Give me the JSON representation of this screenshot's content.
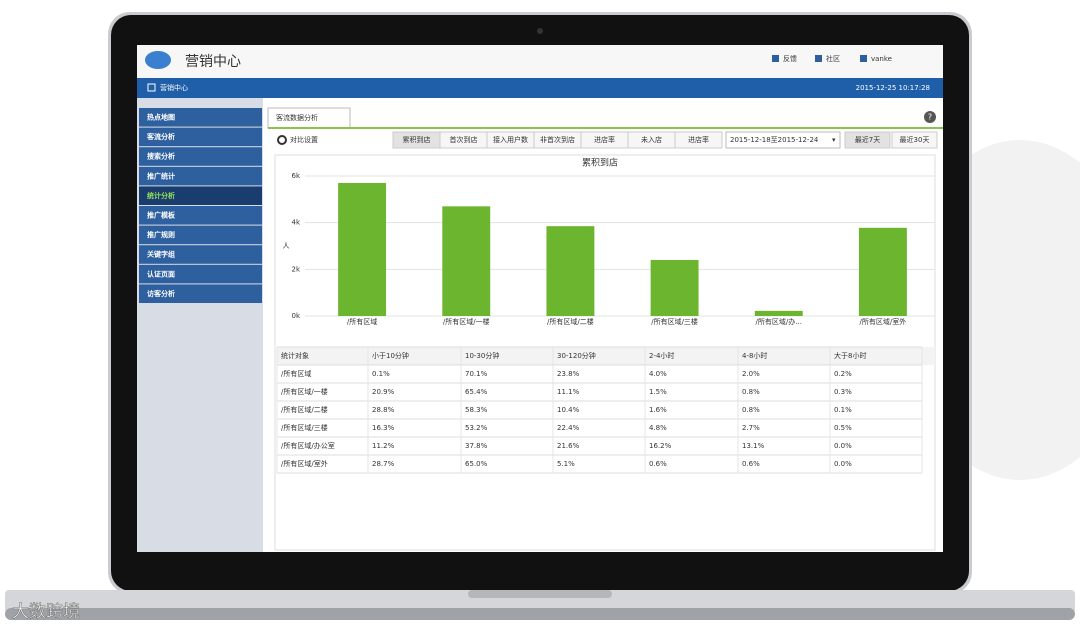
{
  "header": {
    "title": "营销中心",
    "links": [
      "反馈",
      "社区",
      "vanke"
    ]
  },
  "navbar": {
    "title": "营销中心",
    "datetime": "2015-12-25 10:17:28"
  },
  "sidebar": {
    "items": [
      "热点地图",
      "客流分析",
      "搜索分析",
      "推广统计",
      "统计分析",
      "推广模板",
      "推广规则",
      "关键字组",
      "认证页面",
      "访客分析"
    ],
    "active": 4
  },
  "tab": "客流数据分析",
  "toolbar": {
    "settings": "对比设置",
    "metrics": [
      "累积到店",
      "首次到店",
      "接入用户数",
      "非首次到店",
      "进店率",
      "未入店",
      "进店率"
    ],
    "active_metric": 0,
    "date_range": "2015-12-18至2015-12-24",
    "ranges": [
      "最近7天",
      "最近30天"
    ],
    "active_range": 0
  },
  "chart_data": {
    "type": "bar",
    "title": "累积到店",
    "y_label": "人",
    "categories": [
      "/所有区域",
      "/所有区域/一楼",
      "/所有区域/二楼",
      "/所有区域/三楼",
      "/所有区域/办...",
      "/所有区域/室外"
    ],
    "values": [
      5700,
      4700,
      3850,
      2400,
      220,
      3780
    ],
    "color": "#6cb52f",
    "ylim": [
      0,
      6000
    ],
    "yticks": [
      {
        "value": 0,
        "label": "0k"
      },
      {
        "value": 2000,
        "label": "2k"
      },
      {
        "value": 4000,
        "label": "4k"
      },
      {
        "value": 6000,
        "label": "6k"
      }
    ],
    "grid": true
  },
  "table": {
    "columns": [
      "统计对象",
      "小于10分钟",
      "10-30分钟",
      "30-120分钟",
      "2-4小时",
      "4-8小时",
      "大于8小时"
    ],
    "rows": [
      [
        "/所有区域",
        "0.1%",
        "70.1%",
        "23.8%",
        "4.0%",
        "2.0%",
        "0.2%"
      ],
      [
        "/所有区域/一楼",
        "20.9%",
        "65.4%",
        "11.1%",
        "1.5%",
        "0.8%",
        "0.3%"
      ],
      [
        "/所有区域/二楼",
        "28.8%",
        "58.3%",
        "10.4%",
        "1.6%",
        "0.8%",
        "0.1%"
      ],
      [
        "/所有区域/三楼",
        "16.3%",
        "53.2%",
        "22.4%",
        "4.8%",
        "2.7%",
        "0.5%"
      ],
      [
        "/所有区域/办公室",
        "11.2%",
        "37.8%",
        "21.6%",
        "16.2%",
        "13.1%",
        "0.0%"
      ],
      [
        "/所有区域/室外",
        "28.7%",
        "65.0%",
        "5.1%",
        "0.6%",
        "0.6%",
        "0.0%"
      ]
    ]
  },
  "watermark": "大数跨境"
}
